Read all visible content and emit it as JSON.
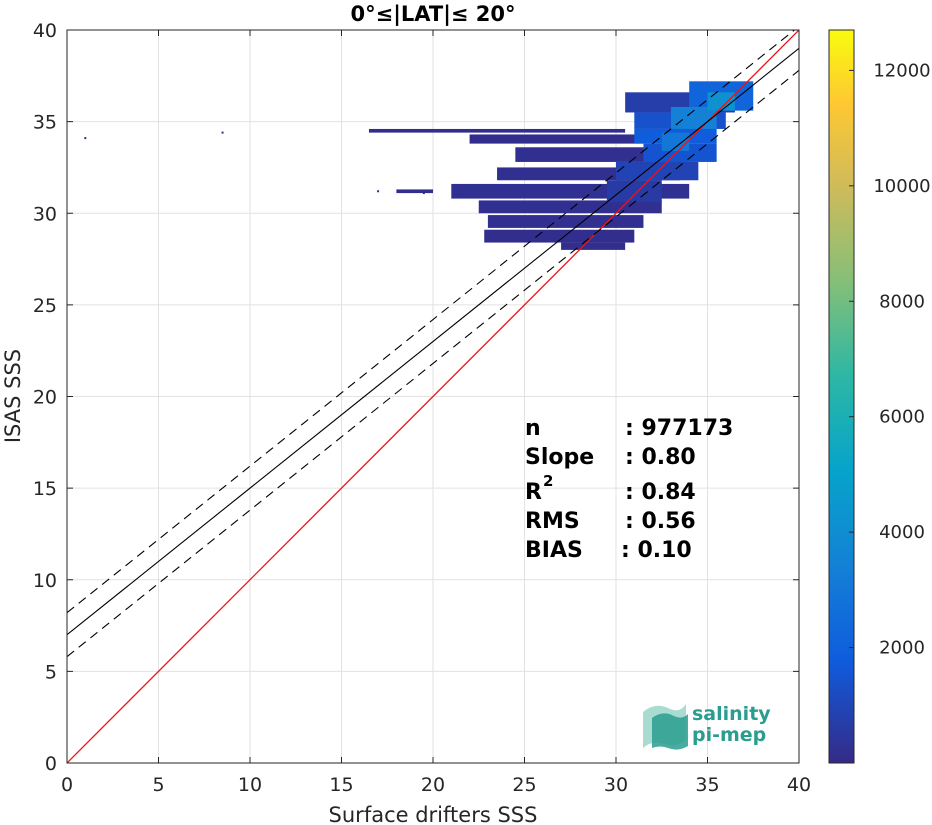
{
  "chart_data": {
    "type": "heatmap",
    "title": "0°≤|LAT|≤ 20°",
    "xlabel": "Surface drifters SSS",
    "ylabel": "ISAS SSS",
    "xlim": [
      0,
      40
    ],
    "ylim": [
      0,
      40
    ],
    "xticks": [
      0,
      5,
      10,
      15,
      20,
      25,
      30,
      35,
      40
    ],
    "yticks": [
      0,
      5,
      10,
      15,
      20,
      25,
      30,
      35,
      40
    ],
    "grid": true,
    "colorbar": {
      "min": 0,
      "max": 12700,
      "ticks": [
        2000,
        4000,
        6000,
        8000,
        10000,
        12000
      ],
      "colormap": "parula"
    },
    "fit_line": {
      "slope": 0.8,
      "intercept": 7.0,
      "band": 1.2
    },
    "identity_line": {
      "color": "#e8151a"
    },
    "density_blocks": [
      {
        "x0": 16.5,
        "x1": 30.5,
        "y0": 34.4,
        "y1": 34.6,
        "value": 150
      },
      {
        "x0": 22.0,
        "x1": 31.5,
        "y0": 33.8,
        "y1": 34.3,
        "value": 120
      },
      {
        "x0": 24.5,
        "x1": 34.0,
        "y0": 32.8,
        "y1": 33.6,
        "value": 200
      },
      {
        "x0": 23.5,
        "x1": 33.5,
        "y0": 31.8,
        "y1": 32.5,
        "value": 180
      },
      {
        "x0": 18.0,
        "x1": 20.0,
        "y0": 31.1,
        "y1": 31.3,
        "value": 100
      },
      {
        "x0": 21.0,
        "x1": 34.0,
        "y0": 30.8,
        "y1": 31.6,
        "value": 220
      },
      {
        "x0": 22.5,
        "x1": 32.5,
        "y0": 30.0,
        "y1": 30.7,
        "value": 200
      },
      {
        "x0": 23.0,
        "x1": 31.5,
        "y0": 29.2,
        "y1": 29.9,
        "value": 180
      },
      {
        "x0": 22.8,
        "x1": 31.0,
        "y0": 28.4,
        "y1": 29.1,
        "value": 150
      },
      {
        "x0": 27.0,
        "x1": 30.5,
        "y0": 28.0,
        "y1": 28.4,
        "value": 100
      },
      {
        "x0": 30.5,
        "x1": 36.5,
        "y0": 35.5,
        "y1": 36.6,
        "value": 700
      },
      {
        "x0": 31.0,
        "x1": 36.0,
        "y0": 34.6,
        "y1": 35.5,
        "value": 1400
      },
      {
        "x0": 31.0,
        "x1": 35.5,
        "y0": 33.8,
        "y1": 34.6,
        "value": 1800
      },
      {
        "x0": 31.5,
        "x1": 35.5,
        "y0": 32.8,
        "y1": 33.8,
        "value": 1500
      },
      {
        "x0": 30.0,
        "x1": 34.5,
        "y0": 31.8,
        "y1": 32.8,
        "value": 900
      },
      {
        "x0": 29.5,
        "x1": 32.5,
        "y0": 30.6,
        "y1": 31.8,
        "value": 600
      },
      {
        "x0": 34.0,
        "x1": 37.5,
        "y0": 35.6,
        "y1": 37.2,
        "value": 2200
      },
      {
        "x0": 33.0,
        "x1": 35.5,
        "y0": 34.6,
        "y1": 35.8,
        "value": 3400
      },
      {
        "x0": 32.5,
        "x1": 34.0,
        "y0": 33.4,
        "y1": 34.4,
        "value": 3000
      },
      {
        "x0": 35.0,
        "x1": 36.5,
        "y0": 35.6,
        "y1": 36.6,
        "value": 4200
      }
    ],
    "outlier_points": [
      {
        "x": 1.0,
        "y": 34.1
      },
      {
        "x": 8.5,
        "y": 34.4
      },
      {
        "x": 17.0,
        "y": 31.2
      },
      {
        "x": 19.5,
        "y": 31.1
      },
      {
        "x": 21.3,
        "y": 31.0
      }
    ],
    "stats": {
      "labels": [
        "n",
        "Slope",
        "R",
        "RMS",
        "BIAS"
      ],
      "values": [
        ": 977173",
        ": 0.80",
        ": 0.84",
        ": 0.56",
        ": 0.10"
      ],
      "r_superscript": "2"
    }
  },
  "logo": {
    "line1": "salinity",
    "line2": "pi-mep",
    "color": "#2a9d8f"
  }
}
